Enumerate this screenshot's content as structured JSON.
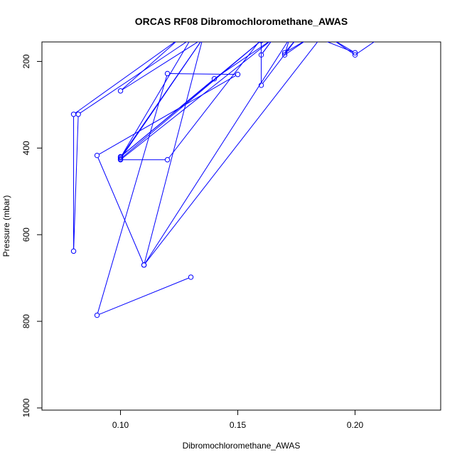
{
  "chart_data": {
    "type": "line",
    "title": "ORCAS RF08 Dibromochloromethane_AWAS",
    "xlabel": "Dibromochloromethane_AWAS",
    "ylabel": "Pressure (mbar)",
    "xlim": [
      0.0665,
      0.2365
    ],
    "ylim": [
      1005,
      155
    ],
    "y_reversed": true,
    "x_ticks": [
      0.1,
      0.15,
      0.2
    ],
    "x_tick_labels": [
      "0.10",
      "0.15",
      "0.20"
    ],
    "y_ticks": [
      200,
      400,
      600,
      800,
      1000
    ],
    "y_tick_labels": [
      "200",
      "400",
      "600",
      "800",
      "1000"
    ],
    "grid": false,
    "series": [
      {
        "color": "#0000ff",
        "marker": "open-circle",
        "points": [
          {
            "x": 0.13,
            "y": 698
          },
          {
            "x": 0.09,
            "y": 786
          },
          {
            "x": 0.12,
            "y": 228
          },
          {
            "x": 0.15,
            "y": 230
          },
          {
            "x": 0.09,
            "y": 417
          },
          {
            "x": 0.11,
            "y": 670
          },
          {
            "x": 0.135,
            "y": 148
          },
          {
            "x": 0.1,
            "y": 268
          },
          {
            "x": 0.125,
            "y": 148
          },
          {
            "x": 0.08,
            "y": 322
          },
          {
            "x": 0.08,
            "y": 638
          },
          {
            "x": 0.082,
            "y": 322
          },
          {
            "x": 0.13,
            "y": 148
          },
          {
            "x": 0.1,
            "y": 422
          },
          {
            "x": 0.135,
            "y": 148
          },
          {
            "x": 0.1,
            "y": 425
          },
          {
            "x": 0.16,
            "y": 152
          },
          {
            "x": 0.1,
            "y": 420
          },
          {
            "x": 0.14,
            "y": 240
          },
          {
            "x": 0.165,
            "y": 148
          },
          {
            "x": 0.16,
            "y": 185
          },
          {
            "x": 0.165,
            "y": 148
          },
          {
            "x": 0.1,
            "y": 427
          },
          {
            "x": 0.12,
            "y": 427
          },
          {
            "x": 0.16,
            "y": 148
          },
          {
            "x": 0.16,
            "y": 255
          },
          {
            "x": 0.175,
            "y": 148
          },
          {
            "x": 0.17,
            "y": 180
          },
          {
            "x": 0.18,
            "y": 148
          },
          {
            "x": 0.17,
            "y": 185
          },
          {
            "x": 0.172,
            "y": 148
          },
          {
            "x": 0.11,
            "y": 670
          },
          {
            "x": 0.185,
            "y": 148
          },
          {
            "x": 0.2,
            "y": 180
          },
          {
            "x": 0.19,
            "y": 148
          },
          {
            "x": 0.2,
            "y": 185
          },
          {
            "x": 0.21,
            "y": 148
          }
        ]
      }
    ]
  }
}
